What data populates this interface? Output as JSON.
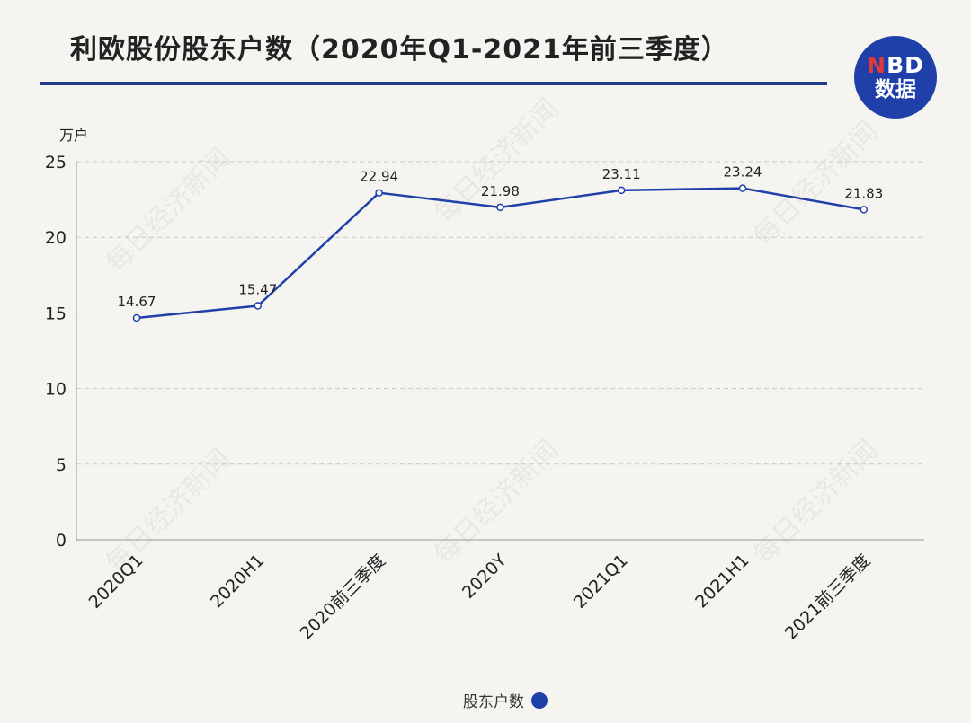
{
  "title": "利欧股份股东户数（2020年Q1-2021年前三季度）",
  "logo": {
    "line1_n": "N",
    "line1_rest": "BD",
    "line2": "数据"
  },
  "watermark_text": "每日经济新闻",
  "colors": {
    "line": "#1f40a8",
    "accent": "#1f3a8a"
  },
  "chart_data": {
    "type": "line",
    "categories": [
      "2020Q1",
      "2020H1",
      "2020前三季度",
      "2020Y",
      "2021Q1",
      "2021H1",
      "2021前三季度"
    ],
    "series": [
      {
        "name": "股东户数",
        "values": [
          14.67,
          15.47,
          22.94,
          21.98,
          23.11,
          23.24,
          21.83
        ]
      }
    ],
    "unit_label": "万户",
    "ylim": [
      0,
      25
    ],
    "yticks": [
      0,
      5,
      10,
      15,
      20,
      25
    ],
    "grid": true,
    "legend": "bottom-center"
  }
}
